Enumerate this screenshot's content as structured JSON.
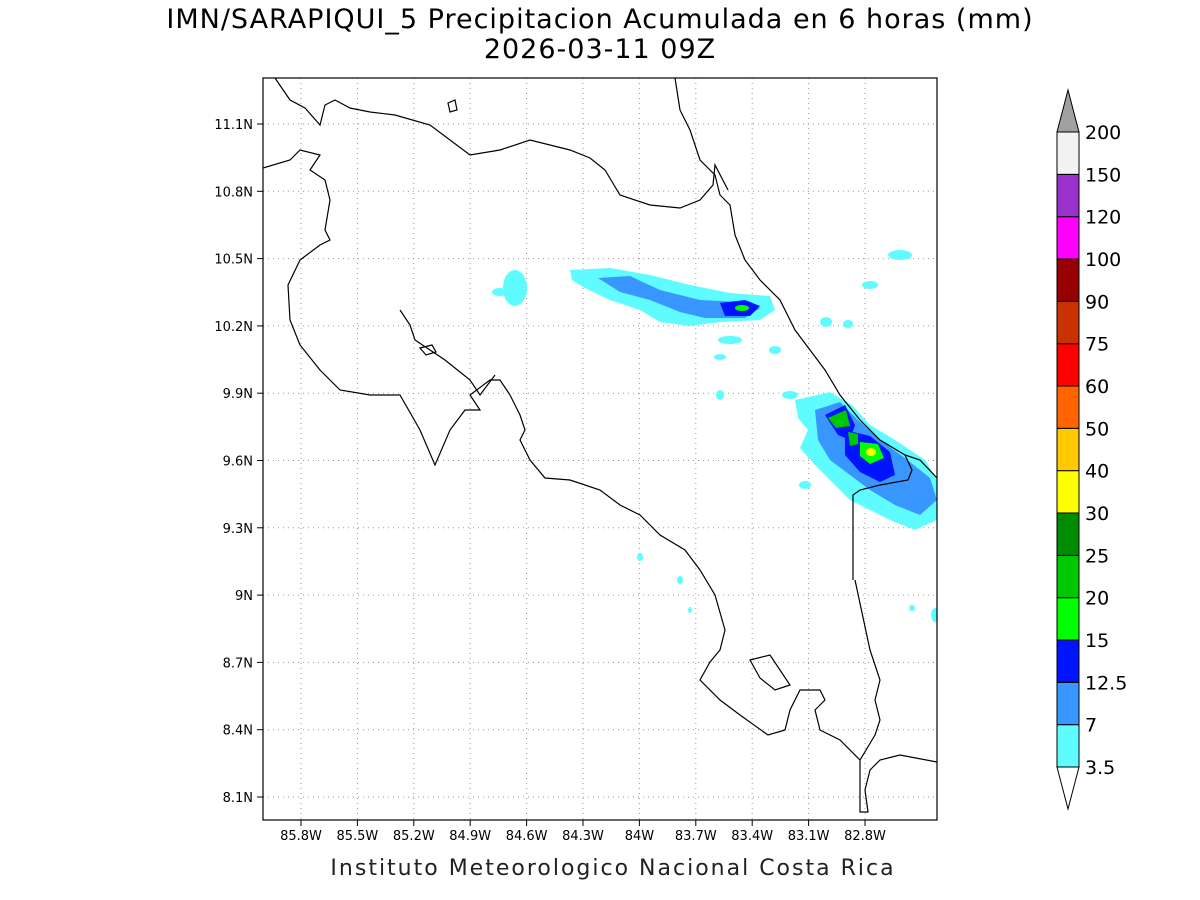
{
  "title": "IMN/SARAPIQUI_5 Precipitacion Acumulada en 6 horas (mm)",
  "subtitle": "2026-03-11 09Z",
  "footer": "Instituto Meteorologico Nacional Costa Rica",
  "lon_ticks": [
    "85.8W",
    "85.5W",
    "85.2W",
    "84.9W",
    "84.6W",
    "84.3W",
    "84W",
    "83.7W",
    "83.4W",
    "83.1W",
    "82.8W"
  ],
  "lat_ticks": [
    "11.1N",
    "10.8N",
    "10.5N",
    "10.2N",
    "9.9N",
    "9.6N",
    "9.3N",
    "9N",
    "8.7N",
    "8.4N",
    "8.1N"
  ],
  "legend": {
    "levels": [
      "3.5",
      "7",
      "12.5",
      "15",
      "20",
      "25",
      "30",
      "40",
      "50",
      "60",
      "75",
      "90",
      "100",
      "120",
      "150",
      "200"
    ],
    "colors": [
      "#ffffff",
      "#5ffcff",
      "#3a96ff",
      "#0014ff",
      "#00ff00",
      "#00c800",
      "#008c00",
      "#ffff00",
      "#ffc800",
      "#ff6400",
      "#ff0000",
      "#c83200",
      "#960000",
      "#ff00ff",
      "#9932cc",
      "#f2f2f2",
      "#a0a0a0"
    ]
  }
}
